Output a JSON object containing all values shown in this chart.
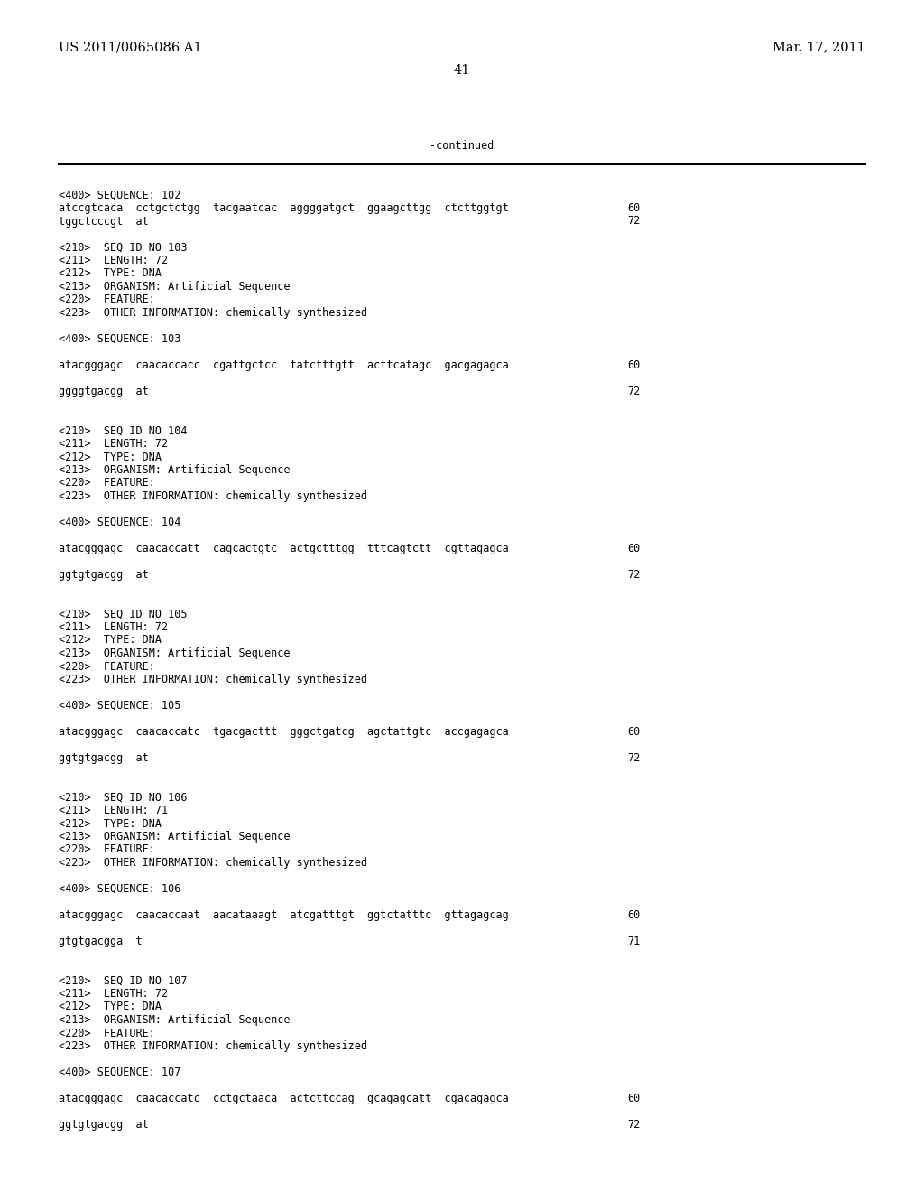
{
  "background_color": "#ffffff",
  "top_left_text": "US 2011/0065086 A1",
  "top_right_text": "Mar. 17, 2011",
  "page_number": "41",
  "continued_text": "-continued",
  "figwidth": 10.24,
  "figheight": 13.2,
  "dpi": 100,
  "header_font_size": 10.5,
  "mono_font_size": 8.5,
  "content": [
    {
      "text": "<400> SEQUENCE: 102",
      "row": 0,
      "col": "left",
      "num": null
    },
    {
      "text": "atccgtcaca  cctgctctgg  tacgaatcac  aggggatgct  ggaagcttgg  ctcttggtgt",
      "row": 1,
      "col": "left",
      "num": "60"
    },
    {
      "text": "tggctcccgt  at",
      "row": 2,
      "col": "left",
      "num": "72"
    },
    {
      "text": "",
      "row": 3,
      "col": "left",
      "num": null
    },
    {
      "text": "<210>  SEQ ID NO 103",
      "row": 4,
      "col": "left",
      "num": null
    },
    {
      "text": "<211>  LENGTH: 72",
      "row": 5,
      "col": "left",
      "num": null
    },
    {
      "text": "<212>  TYPE: DNA",
      "row": 6,
      "col": "left",
      "num": null
    },
    {
      "text": "<213>  ORGANISM: Artificial Sequence",
      "row": 7,
      "col": "left",
      "num": null
    },
    {
      "text": "<220>  FEATURE:",
      "row": 8,
      "col": "left",
      "num": null
    },
    {
      "text": "<223>  OTHER INFORMATION: chemically synthesized",
      "row": 9,
      "col": "left",
      "num": null
    },
    {
      "text": "",
      "row": 10,
      "col": "left",
      "num": null
    },
    {
      "text": "<400> SEQUENCE: 103",
      "row": 11,
      "col": "left",
      "num": null
    },
    {
      "text": "",
      "row": 12,
      "col": "left",
      "num": null
    },
    {
      "text": "atacgggagc  caacaccacc  cgattgctcc  tatctttgtt  acttcatagc  gacgagagca",
      "row": 13,
      "col": "left",
      "num": "60"
    },
    {
      "text": "",
      "row": 14,
      "col": "left",
      "num": null
    },
    {
      "text": "ggggtgacgg  at",
      "row": 15,
      "col": "left",
      "num": "72"
    },
    {
      "text": "",
      "row": 16,
      "col": "left",
      "num": null
    },
    {
      "text": "",
      "row": 17,
      "col": "left",
      "num": null
    },
    {
      "text": "<210>  SEQ ID NO 104",
      "row": 18,
      "col": "left",
      "num": null
    },
    {
      "text": "<211>  LENGTH: 72",
      "row": 19,
      "col": "left",
      "num": null
    },
    {
      "text": "<212>  TYPE: DNA",
      "row": 20,
      "col": "left",
      "num": null
    },
    {
      "text": "<213>  ORGANISM: Artificial Sequence",
      "row": 21,
      "col": "left",
      "num": null
    },
    {
      "text": "<220>  FEATURE:",
      "row": 22,
      "col": "left",
      "num": null
    },
    {
      "text": "<223>  OTHER INFORMATION: chemically synthesized",
      "row": 23,
      "col": "left",
      "num": null
    },
    {
      "text": "",
      "row": 24,
      "col": "left",
      "num": null
    },
    {
      "text": "<400> SEQUENCE: 104",
      "row": 25,
      "col": "left",
      "num": null
    },
    {
      "text": "",
      "row": 26,
      "col": "left",
      "num": null
    },
    {
      "text": "atacgggagc  caacaccatt  cagcactgtc  actgctttgg  tttcagtctt  cgttagagca",
      "row": 27,
      "col": "left",
      "num": "60"
    },
    {
      "text": "",
      "row": 28,
      "col": "left",
      "num": null
    },
    {
      "text": "ggtgtgacgg  at",
      "row": 29,
      "col": "left",
      "num": "72"
    },
    {
      "text": "",
      "row": 30,
      "col": "left",
      "num": null
    },
    {
      "text": "",
      "row": 31,
      "col": "left",
      "num": null
    },
    {
      "text": "<210>  SEQ ID NO 105",
      "row": 32,
      "col": "left",
      "num": null
    },
    {
      "text": "<211>  LENGTH: 72",
      "row": 33,
      "col": "left",
      "num": null
    },
    {
      "text": "<212>  TYPE: DNA",
      "row": 34,
      "col": "left",
      "num": null
    },
    {
      "text": "<213>  ORGANISM: Artificial Sequence",
      "row": 35,
      "col": "left",
      "num": null
    },
    {
      "text": "<220>  FEATURE:",
      "row": 36,
      "col": "left",
      "num": null
    },
    {
      "text": "<223>  OTHER INFORMATION: chemically synthesized",
      "row": 37,
      "col": "left",
      "num": null
    },
    {
      "text": "",
      "row": 38,
      "col": "left",
      "num": null
    },
    {
      "text": "<400> SEQUENCE: 105",
      "row": 39,
      "col": "left",
      "num": null
    },
    {
      "text": "",
      "row": 40,
      "col": "left",
      "num": null
    },
    {
      "text": "atacgggagc  caacaccatc  tgacgacttt  gggctgatcg  agctattgtc  accgagagca",
      "row": 41,
      "col": "left",
      "num": "60"
    },
    {
      "text": "",
      "row": 42,
      "col": "left",
      "num": null
    },
    {
      "text": "ggtgtgacgg  at",
      "row": 43,
      "col": "left",
      "num": "72"
    },
    {
      "text": "",
      "row": 44,
      "col": "left",
      "num": null
    },
    {
      "text": "",
      "row": 45,
      "col": "left",
      "num": null
    },
    {
      "text": "<210>  SEQ ID NO 106",
      "row": 46,
      "col": "left",
      "num": null
    },
    {
      "text": "<211>  LENGTH: 71",
      "row": 47,
      "col": "left",
      "num": null
    },
    {
      "text": "<212>  TYPE: DNA",
      "row": 48,
      "col": "left",
      "num": null
    },
    {
      "text": "<213>  ORGANISM: Artificial Sequence",
      "row": 49,
      "col": "left",
      "num": null
    },
    {
      "text": "<220>  FEATURE:",
      "row": 50,
      "col": "left",
      "num": null
    },
    {
      "text": "<223>  OTHER INFORMATION: chemically synthesized",
      "row": 51,
      "col": "left",
      "num": null
    },
    {
      "text": "",
      "row": 52,
      "col": "left",
      "num": null
    },
    {
      "text": "<400> SEQUENCE: 106",
      "row": 53,
      "col": "left",
      "num": null
    },
    {
      "text": "",
      "row": 54,
      "col": "left",
      "num": null
    },
    {
      "text": "atacgggagc  caacaccaat  aacataaagt  atcgatttgt  ggtctatttc  gttagagcag",
      "row": 55,
      "col": "left",
      "num": "60"
    },
    {
      "text": "",
      "row": 56,
      "col": "left",
      "num": null
    },
    {
      "text": "gtgtgacgga  t",
      "row": 57,
      "col": "left",
      "num": "71"
    },
    {
      "text": "",
      "row": 58,
      "col": "left",
      "num": null
    },
    {
      "text": "",
      "row": 59,
      "col": "left",
      "num": null
    },
    {
      "text": "<210>  SEQ ID NO 107",
      "row": 60,
      "col": "left",
      "num": null
    },
    {
      "text": "<211>  LENGTH: 72",
      "row": 61,
      "col": "left",
      "num": null
    },
    {
      "text": "<212>  TYPE: DNA",
      "row": 62,
      "col": "left",
      "num": null
    },
    {
      "text": "<213>  ORGANISM: Artificial Sequence",
      "row": 63,
      "col": "left",
      "num": null
    },
    {
      "text": "<220>  FEATURE:",
      "row": 64,
      "col": "left",
      "num": null
    },
    {
      "text": "<223>  OTHER INFORMATION: chemically synthesized",
      "row": 65,
      "col": "left",
      "num": null
    },
    {
      "text": "",
      "row": 66,
      "col": "left",
      "num": null
    },
    {
      "text": "<400> SEQUENCE: 107",
      "row": 67,
      "col": "left",
      "num": null
    },
    {
      "text": "",
      "row": 68,
      "col": "left",
      "num": null
    },
    {
      "text": "atacgggagc  caacaccatc  cctgctaaca  actcttccag  gcagagcatt  cgacagagca",
      "row": 69,
      "col": "left",
      "num": "60"
    },
    {
      "text": "",
      "row": 70,
      "col": "left",
      "num": null
    },
    {
      "text": "ggtgtgacgg  at",
      "row": 71,
      "col": "left",
      "num": "72"
    }
  ]
}
